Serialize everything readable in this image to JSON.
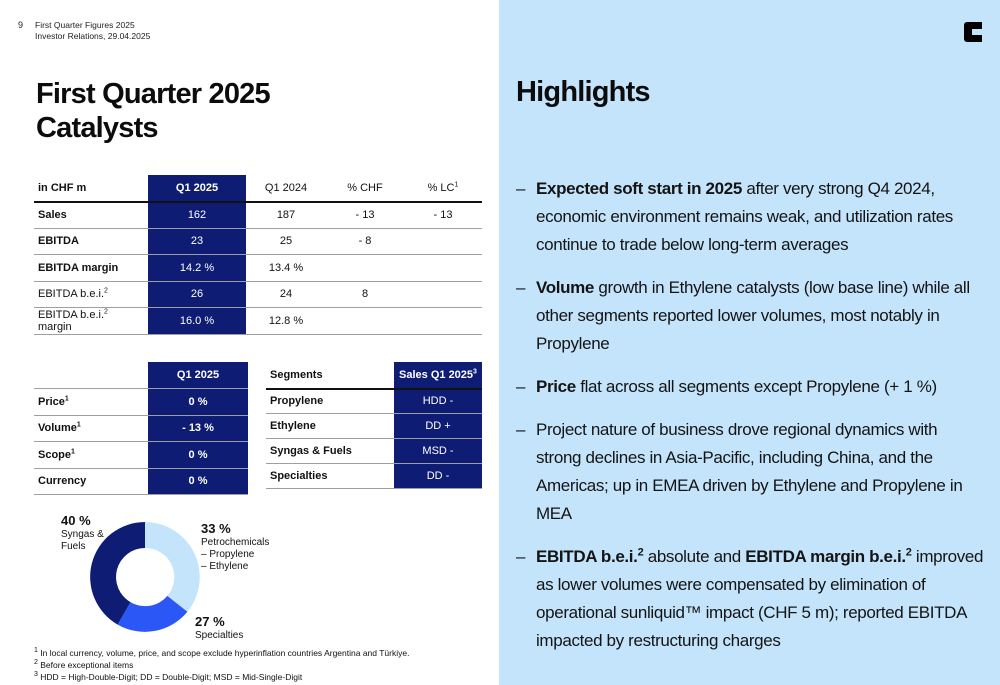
{
  "header": {
    "page_number": "9",
    "doc_title": "First Quarter Figures 2025",
    "doc_subtitle": "Investor Relations, 29.04.2025"
  },
  "left": {
    "title_line1": "First Quarter 2025",
    "title_line2": "Catalysts",
    "kpi_table": {
      "headers": [
        "in CHF m",
        "Q1 2025",
        "Q1 2024",
        "% CHF",
        "% LC"
      ],
      "header_lc_sup": "1",
      "rows": [
        {
          "label": "Sales",
          "sup": "",
          "q1_2025": "162",
          "q1_2024": "187",
          "chf": "- 13",
          "lc": "- 13"
        },
        {
          "label": "EBITDA",
          "sup": "",
          "q1_2025": "23",
          "q1_2024": "25",
          "chf": "- 8",
          "lc": ""
        },
        {
          "label": "EBITDA margin",
          "sup": "",
          "q1_2025": "14.2 %",
          "q1_2024": "13.4 %",
          "chf": "",
          "lc": ""
        },
        {
          "label": "EBITDA b.e.i.",
          "sup": "2",
          "label_suffix": "",
          "q1_2025": "26",
          "q1_2024": "24",
          "chf": "8",
          "lc": ""
        },
        {
          "label": "EBITDA b.e.i.",
          "sup": "2",
          "label_suffix": " margin",
          "q1_2025": "16.0 %",
          "q1_2024": "12.8 %",
          "chf": "",
          "lc": ""
        }
      ]
    },
    "drivers_table": {
      "header": "Q1 2025",
      "rows": [
        {
          "label": "Price",
          "sup": "1",
          "value": "0 %"
        },
        {
          "label": "Volume",
          "sup": "1",
          "value": "- 13 %"
        },
        {
          "label": "Scope",
          "sup": "1",
          "value": "0 %"
        },
        {
          "label": "Currency",
          "sup": "",
          "value": "0 %"
        }
      ]
    },
    "segments_table": {
      "headers": [
        "Segments",
        "Sales Q1 2025"
      ],
      "header_sup": "3",
      "rows": [
        {
          "segment": "Propylene",
          "value": "HDD -"
        },
        {
          "segment": "Ethylene",
          "value": "DD +"
        },
        {
          "segment": "Syngas & Fuels",
          "value": "MSD -"
        },
        {
          "segment": "Specialties",
          "value": "DD -"
        }
      ]
    },
    "donut": {
      "colors": {
        "syngas": "#0e1d73",
        "petro": "#c4e4fb",
        "specialties": "#2a57f5"
      },
      "syngas": {
        "pct": "40 %",
        "l1": "Syngas &",
        "l2": "Fuels"
      },
      "petro": {
        "pct": "33 %",
        "l1": "Petrochemicals",
        "l2": "– Propylene",
        "l3": "– Ethylene"
      },
      "specialties": {
        "pct": "27 %",
        "l1": "Specialties"
      }
    },
    "footnotes": [
      {
        "sup": "1",
        "text": " In local currency, volume, price, and scope exclude hyperinflation countries Argentina and Türkiye."
      },
      {
        "sup": "2",
        "text": " Before exceptional items"
      },
      {
        "sup": "3",
        "text": " HDD = High-Double-Digit; DD = Double-Digit; MSD = Mid-Single-Digit"
      }
    ]
  },
  "right": {
    "title": "Highlights",
    "bullets": [
      {
        "bold": "Expected soft start in 2025",
        "text": " after very strong Q4 2024, economic environment remains weak, and utilization rates continue to trade below long-term averages"
      },
      {
        "bold": "Volume",
        "text": " growth in Ethylene catalysts (low base line) while all other segments reported lower volumes, most notably in Propylene"
      },
      {
        "bold": "Price",
        "text": " flat across all segments except Propylene (+ 1 %)"
      },
      {
        "bold": "",
        "text": "Project nature of business drove regional dynamics with strong declines in Asia-Pacific, including China, and the Americas; up in EMEA driven by Ethylene and Propylene in MEA"
      },
      {
        "bold": "EBITDA b.e.i.",
        "sup": "2",
        "text": " absolute and ",
        "bold2": "EBITDA margin b.e.i.",
        "sup2": "2",
        "text2": " improved as lower volumes were compensated by elimination of operational sunliquid™ impact (CHF 5 m); reported EBITDA impacted by restructuring charges"
      }
    ]
  }
}
